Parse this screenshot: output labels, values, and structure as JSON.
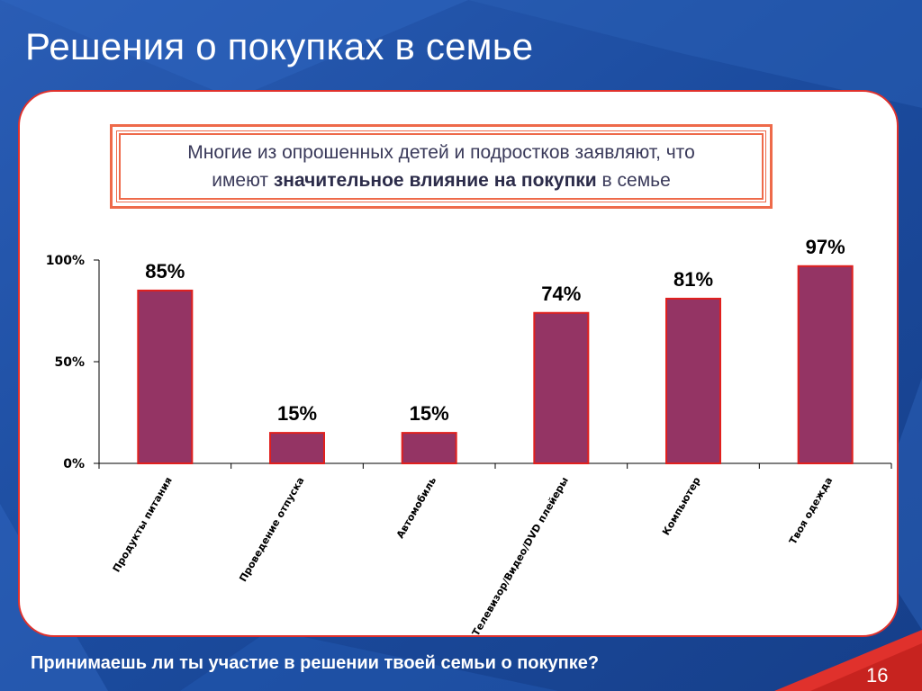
{
  "slide": {
    "title": "Решения о покупках в семье",
    "callout": {
      "line1": "Многие из опрошенных детей и подростков заявляют, что",
      "line2_prefix": "имеют ",
      "line2_bold": "значительное влияние на покупки",
      "line2_suffix": " в семье"
    },
    "question": "Принимаешь ли ты участие в решении твоей семьи о покупке?",
    "page_number": "16"
  },
  "colors": {
    "bar_fill": "#943464",
    "bar_stroke": "#e0201e",
    "background_blue": "#1d4fa3",
    "accent_red": "#e0312c"
  },
  "chart_data": {
    "type": "bar",
    "categories": [
      "Продукты питания",
      "Проведение отпуска",
      "Автомобиль",
      "Телевизор/Видео/DVD плейеры",
      "Компьютер",
      "Твоя одежда"
    ],
    "values": [
      85,
      15,
      15,
      74,
      81,
      97
    ],
    "value_labels": [
      "85%",
      "15%",
      "15%",
      "74%",
      "81%",
      "97%"
    ],
    "ylim": [
      0,
      100
    ],
    "yticks": [
      0,
      50,
      100
    ],
    "ytick_labels": [
      "0%",
      "50%",
      "100%"
    ],
    "grid": false,
    "legend": "none"
  }
}
